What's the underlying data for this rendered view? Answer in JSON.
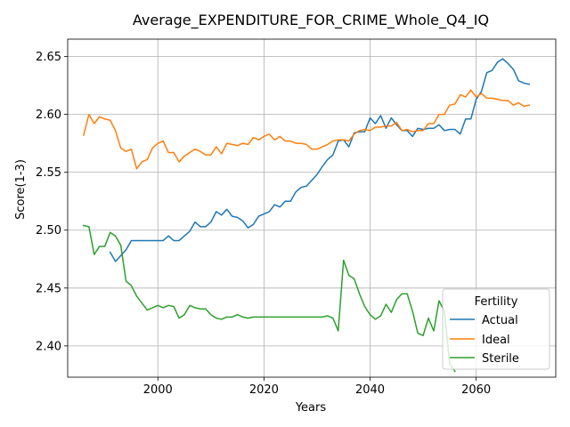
{
  "chart_data": {
    "type": "line",
    "title": "Average_EXPENDITURE_FOR_CRIME_Whole_Q4_IQ",
    "xlabel": "Years",
    "ylabel": "Score(1-3)",
    "xlim": [
      1983,
      2075
    ],
    "ylim": [
      2.373,
      2.665
    ],
    "xticks": [
      "2000",
      "2020",
      "2040",
      "2060"
    ],
    "yticks": [
      "2.40",
      "2.45",
      "2.50",
      "2.55",
      "2.60",
      "2.65"
    ],
    "grid": true,
    "legend": {
      "title": "Fertility",
      "placement": "bottom-right"
    },
    "series": [
      {
        "name": "Actual",
        "color": "#1f77b4",
        "x": [
          1991,
          1992,
          1993,
          1994,
          1995,
          1996,
          1997,
          1998,
          1999,
          2000,
          2001,
          2002,
          2003,
          2004,
          2005,
          2006,
          2007,
          2008,
          2009,
          2010,
          2011,
          2012,
          2013,
          2014,
          2015,
          2016,
          2017,
          2018,
          2019,
          2020,
          2021,
          2022,
          2023,
          2024,
          2025,
          2026,
          2027,
          2028,
          2029,
          2030,
          2031,
          2032,
          2033,
          2034,
          2035,
          2036,
          2037,
          2038,
          2039,
          2040,
          2041,
          2042,
          2043,
          2044,
          2045,
          2046,
          2047,
          2048,
          2049,
          2050,
          2051,
          2052,
          2053,
          2054,
          2055,
          2056,
          2057,
          2058,
          2059,
          2060,
          2061,
          2062,
          2063,
          2064,
          2065,
          2066,
          2067,
          2068,
          2069,
          2070
        ],
        "values": [
          2.481,
          2.473,
          2.478,
          2.483,
          2.491,
          2.491,
          2.491,
          2.491,
          2.491,
          2.491,
          2.491,
          2.495,
          2.491,
          2.491,
          2.495,
          2.499,
          2.507,
          2.503,
          2.503,
          2.507,
          2.516,
          2.513,
          2.518,
          2.512,
          2.511,
          2.508,
          2.502,
          2.505,
          2.512,
          2.514,
          2.516,
          2.522,
          2.52,
          2.525,
          2.525,
          2.533,
          2.537,
          2.538,
          2.543,
          2.548,
          2.555,
          2.561,
          2.565,
          2.577,
          2.578,
          2.572,
          2.584,
          2.585,
          2.585,
          2.597,
          2.592,
          2.599,
          2.588,
          2.597,
          2.591,
          2.586,
          2.586,
          2.581,
          2.588,
          2.587,
          2.588,
          2.588,
          2.591,
          2.586,
          2.587,
          2.587,
          2.583,
          2.596,
          2.596,
          2.613,
          2.62,
          2.636,
          2.638,
          2.645,
          2.648,
          2.644,
          2.639,
          2.629,
          2.627,
          2.626
        ]
      },
      {
        "name": "Ideal",
        "color": "#ff7f0e",
        "x": [
          1986,
          1987,
          1988,
          1989,
          1990,
          1991,
          1992,
          1993,
          1994,
          1995,
          1996,
          1997,
          1998,
          1999,
          2000,
          2001,
          2002,
          2003,
          2004,
          2005,
          2006,
          2007,
          2008,
          2009,
          2010,
          2011,
          2012,
          2013,
          2014,
          2015,
          2016,
          2017,
          2018,
          2019,
          2020,
          2021,
          2022,
          2023,
          2024,
          2025,
          2026,
          2027,
          2028,
          2029,
          2030,
          2031,
          2032,
          2033,
          2034,
          2035,
          2036,
          2037,
          2038,
          2039,
          2040,
          2041,
          2042,
          2043,
          2044,
          2045,
          2046,
          2047,
          2048,
          2049,
          2050,
          2051,
          2052,
          2053,
          2054,
          2055,
          2056,
          2057,
          2058,
          2059,
          2060,
          2061,
          2062,
          2063,
          2064,
          2065,
          2066,
          2067,
          2068,
          2069,
          2070
        ],
        "values": [
          2.582,
          2.6,
          2.592,
          2.598,
          2.596,
          2.595,
          2.586,
          2.571,
          2.568,
          2.57,
          2.553,
          2.559,
          2.561,
          2.571,
          2.575,
          2.577,
          2.567,
          2.567,
          2.559,
          2.564,
          2.567,
          2.57,
          2.568,
          2.565,
          2.565,
          2.572,
          2.566,
          2.575,
          2.574,
          2.573,
          2.575,
          2.574,
          2.58,
          2.578,
          2.581,
          2.583,
          2.578,
          2.581,
          2.577,
          2.577,
          2.575,
          2.575,
          2.574,
          2.57,
          2.57,
          2.572,
          2.574,
          2.577,
          2.578,
          2.578,
          2.577,
          2.583,
          2.586,
          2.587,
          2.586,
          2.589,
          2.589,
          2.59,
          2.59,
          2.593,
          2.586,
          2.587,
          2.585,
          2.586,
          2.586,
          2.592,
          2.592,
          2.6,
          2.6,
          2.608,
          2.609,
          2.617,
          2.615,
          2.621,
          2.615,
          2.618,
          2.614,
          2.614,
          2.613,
          2.612,
          2.612,
          2.608,
          2.61,
          2.607,
          2.608
        ]
      },
      {
        "name": "Sterile",
        "color": "#2ca02c",
        "x": [
          1986,
          1987,
          1988,
          1989,
          1990,
          1991,
          1992,
          1993,
          1994,
          1995,
          1996,
          1997,
          1998,
          1999,
          2000,
          2001,
          2002,
          2003,
          2004,
          2005,
          2006,
          2007,
          2008,
          2009,
          2010,
          2011,
          2012,
          2013,
          2014,
          2015,
          2016,
          2017,
          2018,
          2019,
          2020,
          2021,
          2022,
          2023,
          2024,
          2025,
          2026,
          2027,
          2028,
          2029,
          2030,
          2031,
          2032,
          2033,
          2034,
          2035,
          2036,
          2037,
          2038,
          2039,
          2040,
          2041,
          2042,
          2043,
          2044,
          2045,
          2046,
          2047,
          2048,
          2049,
          2050,
          2051,
          2052,
          2053,
          2054,
          2055,
          2056
        ],
        "values": [
          2.504,
          2.503,
          2.479,
          2.486,
          2.486,
          2.498,
          2.495,
          2.487,
          2.456,
          2.452,
          2.443,
          2.437,
          2.431,
          2.433,
          2.435,
          2.433,
          2.435,
          2.434,
          2.424,
          2.427,
          2.435,
          2.433,
          2.432,
          2.432,
          2.427,
          2.424,
          2.423,
          2.425,
          2.425,
          2.427,
          2.425,
          2.424,
          2.425,
          2.425,
          2.425,
          2.425,
          2.425,
          2.425,
          2.425,
          2.425,
          2.425,
          2.425,
          2.425,
          2.425,
          2.425,
          2.425,
          2.426,
          2.424,
          2.413,
          2.474,
          2.461,
          2.458,
          2.445,
          2.434,
          2.427,
          2.423,
          2.426,
          2.436,
          2.429,
          2.44,
          2.445,
          2.445,
          2.43,
          2.411,
          2.409,
          2.424,
          2.413,
          2.439,
          2.43,
          2.385,
          2.378
        ]
      }
    ]
  }
}
